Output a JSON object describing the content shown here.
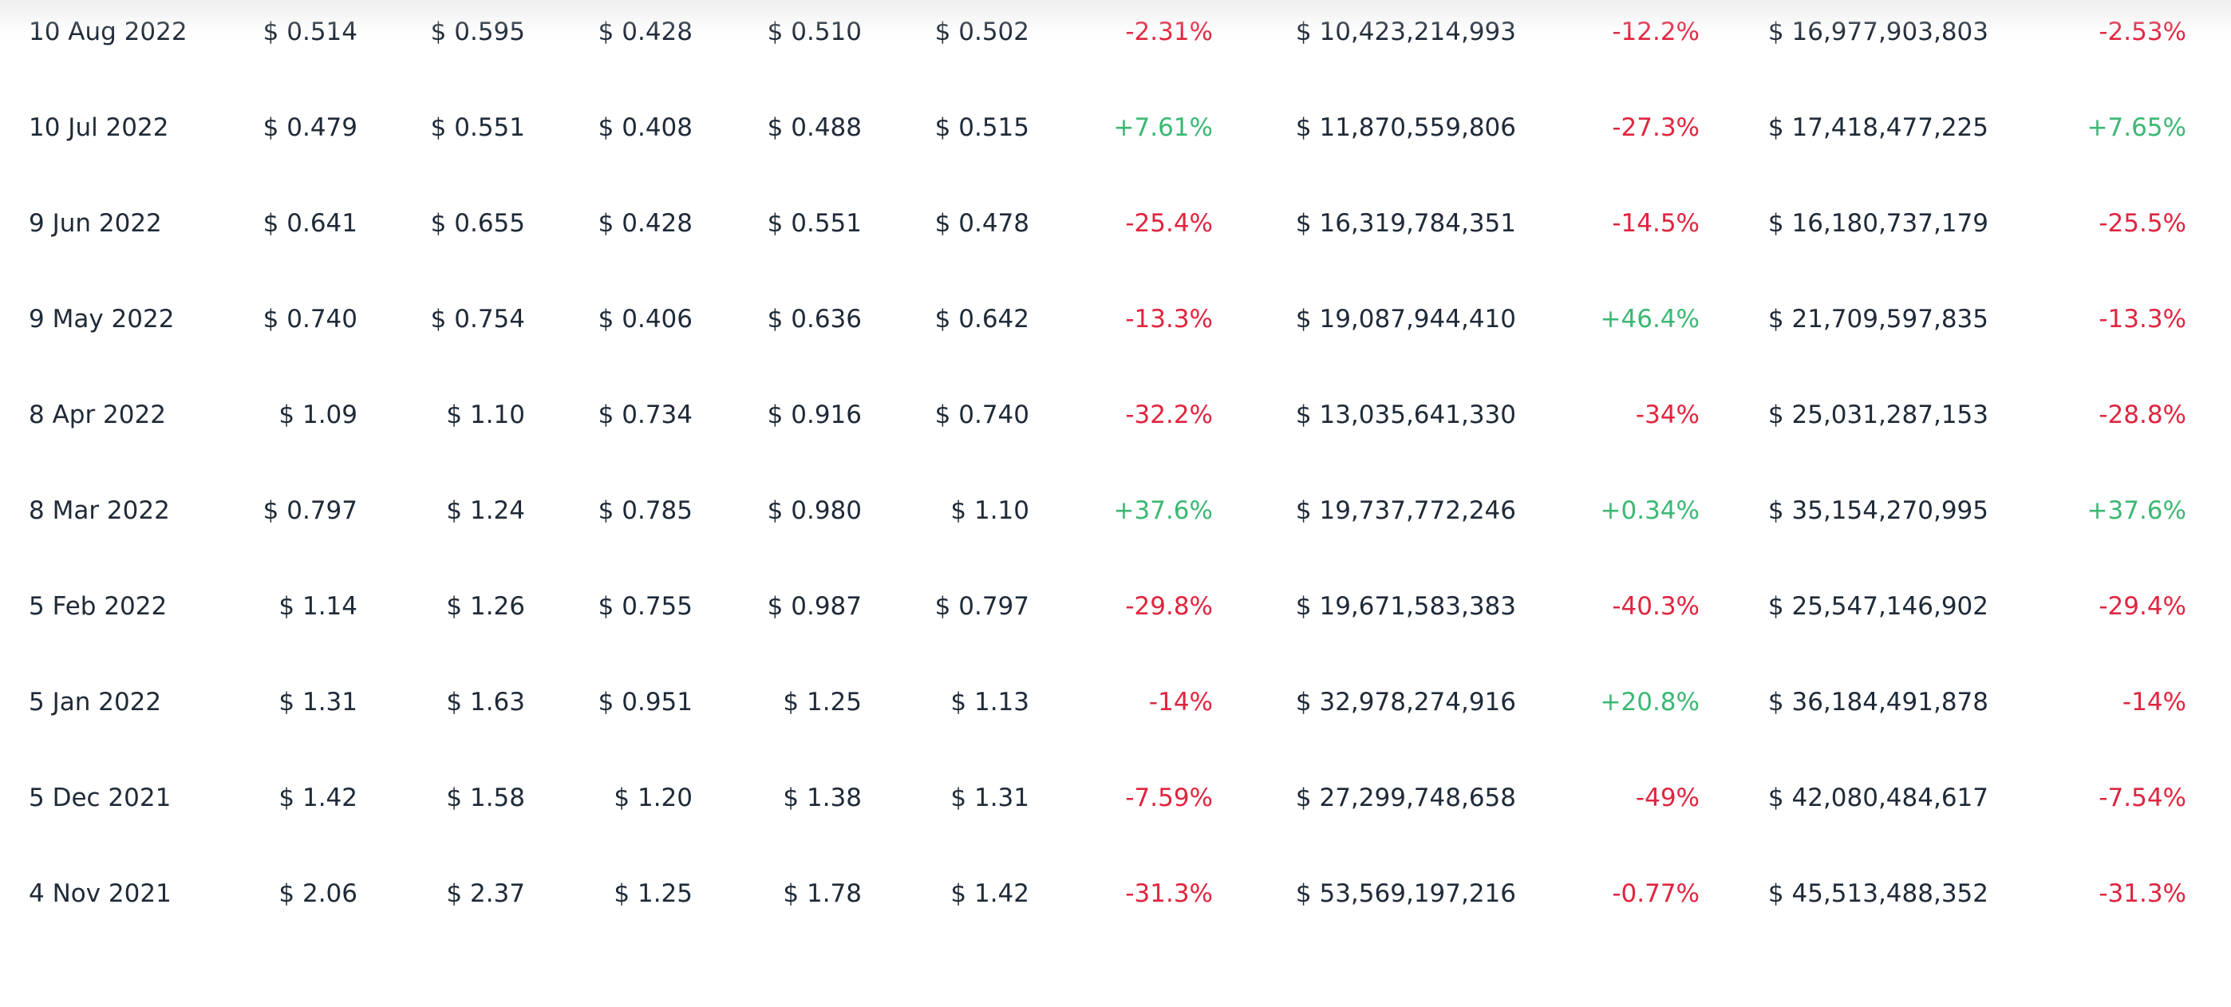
{
  "colors": {
    "text": "#1f2a37",
    "negative": "#e0253f",
    "positive": "#3bb873",
    "background": "#ffffff"
  },
  "rows": [
    {
      "date": "10 Aug 2022",
      "open": "$ 0.514",
      "high": "$ 0.595",
      "low": "$ 0.428",
      "avg": "$ 0.510",
      "close": "$ 0.502",
      "change": "-2.31%",
      "volume": "$ 10,423,214,993",
      "volume_change": "-12.2%",
      "market_cap": "$ 16,977,903,803",
      "market_cap_change": "-2.53%"
    },
    {
      "date": "10 Jul 2022",
      "open": "$ 0.479",
      "high": "$ 0.551",
      "low": "$ 0.408",
      "avg": "$ 0.488",
      "close": "$ 0.515",
      "change": "+7.61%",
      "volume": "$ 11,870,559,806",
      "volume_change": "-27.3%",
      "market_cap": "$ 17,418,477,225",
      "market_cap_change": "+7.65%"
    },
    {
      "date": "9 Jun 2022",
      "open": "$ 0.641",
      "high": "$ 0.655",
      "low": "$ 0.428",
      "avg": "$ 0.551",
      "close": "$ 0.478",
      "change": "-25.4%",
      "volume": "$ 16,319,784,351",
      "volume_change": "-14.5%",
      "market_cap": "$ 16,180,737,179",
      "market_cap_change": "-25.5%"
    },
    {
      "date": "9 May 2022",
      "open": "$ 0.740",
      "high": "$ 0.754",
      "low": "$ 0.406",
      "avg": "$ 0.636",
      "close": "$ 0.642",
      "change": "-13.3%",
      "volume": "$ 19,087,944,410",
      "volume_change": "+46.4%",
      "market_cap": "$ 21,709,597,835",
      "market_cap_change": "-13.3%"
    },
    {
      "date": "8 Apr 2022",
      "open": "$ 1.09",
      "high": "$ 1.10",
      "low": "$ 0.734",
      "avg": "$ 0.916",
      "close": "$ 0.740",
      "change": "-32.2%",
      "volume": "$ 13,035,641,330",
      "volume_change": "-34%",
      "market_cap": "$ 25,031,287,153",
      "market_cap_change": "-28.8%"
    },
    {
      "date": "8 Mar 2022",
      "open": "$ 0.797",
      "high": "$ 1.24",
      "low": "$ 0.785",
      "avg": "$ 0.980",
      "close": "$ 1.10",
      "change": "+37.6%",
      "volume": "$ 19,737,772,246",
      "volume_change": "+0.34%",
      "market_cap": "$ 35,154,270,995",
      "market_cap_change": "+37.6%"
    },
    {
      "date": "5 Feb 2022",
      "open": "$ 1.14",
      "high": "$ 1.26",
      "low": "$ 0.755",
      "avg": "$ 0.987",
      "close": "$ 0.797",
      "change": "-29.8%",
      "volume": "$ 19,671,583,383",
      "volume_change": "-40.3%",
      "market_cap": "$ 25,547,146,902",
      "market_cap_change": "-29.4%"
    },
    {
      "date": "5 Jan 2022",
      "open": "$ 1.31",
      "high": "$ 1.63",
      "low": "$ 0.951",
      "avg": "$ 1.25",
      "close": "$ 1.13",
      "change": "-14%",
      "volume": "$ 32,978,274,916",
      "volume_change": "+20.8%",
      "market_cap": "$ 36,184,491,878",
      "market_cap_change": "-14%"
    },
    {
      "date": "5 Dec 2021",
      "open": "$ 1.42",
      "high": "$ 1.58",
      "low": "$ 1.20",
      "avg": "$ 1.38",
      "close": "$ 1.31",
      "change": "-7.59%",
      "volume": "$ 27,299,748,658",
      "volume_change": "-49%",
      "market_cap": "$ 42,080,484,617",
      "market_cap_change": "-7.54%"
    },
    {
      "date": "4 Nov 2021",
      "open": "$ 2.06",
      "high": "$ 2.37",
      "low": "$ 1.25",
      "avg": "$ 1.78",
      "close": "$ 1.42",
      "change": "-31.3%",
      "volume": "$ 53,569,197,216",
      "volume_change": "-0.77%",
      "market_cap": "$ 45,513,488,352",
      "market_cap_change": "-31.3%"
    }
  ]
}
